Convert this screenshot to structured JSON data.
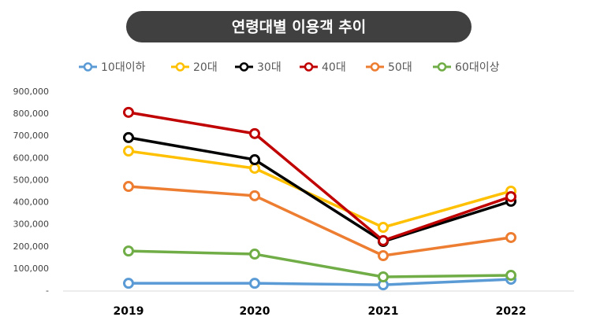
{
  "chart_data": {
    "type": "line",
    "title": "연령대별 이용객 추이",
    "categories": [
      "2019",
      "2020",
      "2021",
      "2022"
    ],
    "series": [
      {
        "name": "10대이하",
        "color": "#5b9bd5",
        "values": [
          35000,
          35000,
          28000,
          53000
        ]
      },
      {
        "name": "20대",
        "color": "#ffc000",
        "values": [
          633000,
          555000,
          288000,
          452000
        ]
      },
      {
        "name": "30대",
        "color": "#000000",
        "values": [
          694000,
          594000,
          224000,
          406000
        ]
      },
      {
        "name": "40대",
        "color": "#c00000",
        "values": [
          808000,
          712000,
          228000,
          427000
        ]
      },
      {
        "name": "50대",
        "color": "#ed7d31",
        "values": [
          473000,
          431000,
          160000,
          242000
        ]
      },
      {
        "name": "60대이상",
        "color": "#70ad47",
        "values": [
          181000,
          167000,
          64000,
          71000
        ]
      }
    ],
    "ylim": [
      0,
      900000
    ],
    "yticks": [
      {
        "value": 0,
        "label": "-"
      },
      {
        "value": 100000,
        "label": "100,000"
      },
      {
        "value": 200000,
        "label": "200,000"
      },
      {
        "value": 300000,
        "label": "300,000"
      },
      {
        "value": 400000,
        "label": "400,000"
      },
      {
        "value": 500000,
        "label": "500,000"
      },
      {
        "value": 600000,
        "label": "600,000"
      },
      {
        "value": 700000,
        "label": "700,000"
      },
      {
        "value": 800000,
        "label": "800,000"
      },
      {
        "value": 900000,
        "label": "900,000"
      }
    ],
    "legend": "top"
  }
}
